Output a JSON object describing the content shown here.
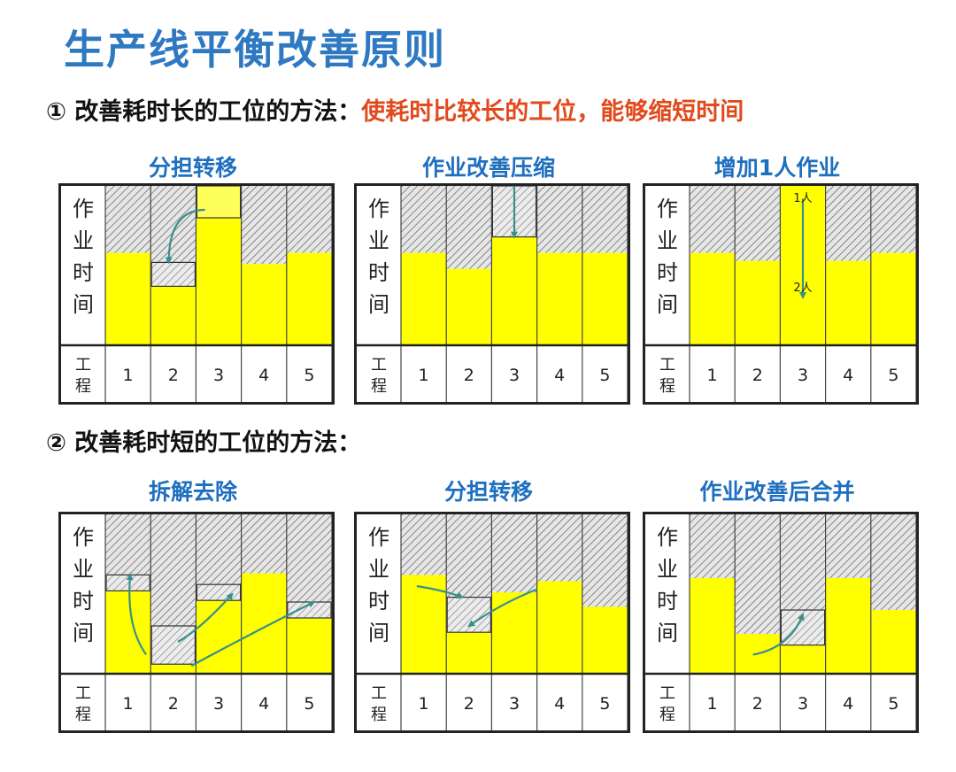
{
  "title": "生产线平衡改善原则",
  "section1": {
    "marker": "①",
    "label": "改善耗时长的工位的方法：",
    "highlight": "使耗时比较长的工位，能够缩短时间"
  },
  "section2": {
    "marker": "②",
    "label": "改善耗时短的工位的方法："
  },
  "axis": {
    "y_label": "作业时间",
    "x_label": "工程"
  },
  "stations": [
    "1",
    "2",
    "3",
    "4",
    "5"
  ],
  "panels": [
    {
      "id": "p1",
      "title": "分担转移",
      "values": [
        58,
        37,
        100,
        51,
        58
      ],
      "before": [
        null,
        52,
        80,
        null,
        null
      ]
    },
    {
      "id": "p2",
      "title": "作业改善压缩",
      "values": [
        58,
        48,
        68,
        58,
        58
      ],
      "before": [
        null,
        null,
        100,
        null,
        null
      ]
    },
    {
      "id": "p3",
      "title": "增加1人作业",
      "values": [
        58,
        53,
        100,
        53,
        58
      ],
      "before": [
        null,
        null,
        null,
        null,
        null
      ],
      "labels": {
        "top": "1人",
        "bottom": "2人"
      }
    },
    {
      "id": "p4",
      "title": "拆解去除",
      "values": [
        52,
        6,
        46,
        63,
        35
      ],
      "before": [
        62,
        30,
        56,
        null,
        45
      ]
    },
    {
      "id": "p5",
      "title": "分担转移",
      "values": [
        62,
        26,
        51,
        58,
        42
      ],
      "before": [
        null,
        48,
        null,
        null,
        null
      ]
    },
    {
      "id": "p6",
      "title": "作业改善后合并",
      "values": [
        60,
        25,
        18,
        60,
        40
      ],
      "before": [
        null,
        null,
        40,
        null,
        null
      ]
    }
  ],
  "colors": {
    "bar": "#ffff00",
    "hatch_bg": "#e6e6e6",
    "hatch_line": "#6e6e6e",
    "arrow": "#3a8f8a",
    "title": "#2f79c2",
    "highlight": "#e04a1d"
  }
}
